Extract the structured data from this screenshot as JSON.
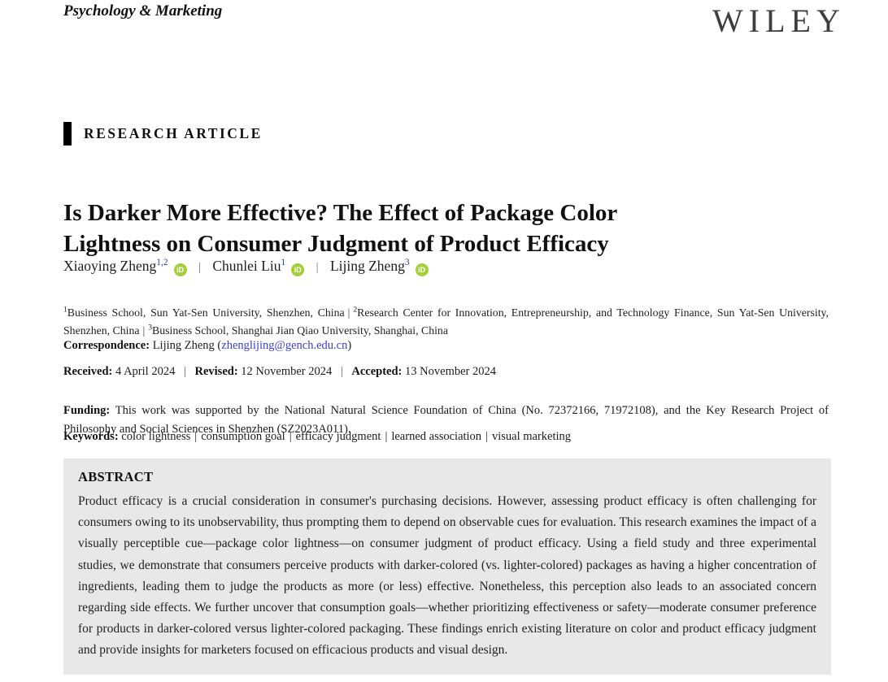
{
  "header": {
    "journal_name": "Psychology & Marketing",
    "publisher": "WILEY"
  },
  "article": {
    "type_label": "RESEARCH ARTICLE",
    "title_lines": [
      "Is Darker More Effective? The Effect of Package Color",
      "Lightness on Consumer Judgment of Product Efficacy"
    ]
  },
  "authors": [
    {
      "name": "Xiaoying Zheng",
      "refs": "1,2"
    },
    {
      "name": "Chunlei Liu",
      "refs": "1"
    },
    {
      "name": "Lijing Zheng",
      "refs": "3"
    }
  ],
  "affiliations": [
    {
      "num": "1",
      "text": "Business School, Sun Yat-Sen University, Shenzhen, China"
    },
    {
      "num": "2",
      "text": "Research Center for Innovation, Entrepreneurship, and Technology Finance, Sun Yat-Sen University, Shenzhen, China"
    },
    {
      "num": "3",
      "text": "Business School, Shanghai Jian Qiao University, Shanghai, China"
    }
  ],
  "correspondence": {
    "label": "Correspondence:",
    "text_before": "Lijing Zheng (",
    "email": "zhenglijing@gench.edu.cn",
    "text_after": ")"
  },
  "dates": {
    "received_label": "Received:",
    "received": "4 April 2024",
    "revised_label": "Revised:",
    "revised": "12 November 2024",
    "accepted_label": "Accepted:",
    "accepted": "13 November 2024"
  },
  "funding": {
    "label": "Funding:",
    "text": "This work was supported by the National Natural Science Foundation of China (No. 72372166, 71972108), and the Key Research Project of Philosophy and Social Sciences in Shenzhen (SZ2023A011)."
  },
  "keywords": {
    "label": "Keywords:",
    "items": [
      "color lightness",
      "consumption goal",
      "efficacy judgment",
      "learned association",
      "visual marketing"
    ]
  },
  "abstract": {
    "heading": "ABSTRACT",
    "text": "Product efficacy is a crucial consideration in consumer's purchasing decisions. However, assessing product efficacy is often challenging for consumers owing to its unobservability, thus prompting them to depend on observable cues for evaluation. This research examines the impact of a visually perceptible cue—package color lightness—on consumer judgment of product efficacy. Using a field study and three experimental studies, we demonstrate that consumers perceive products with darker-colored (vs. lighter-colored) packages as having a higher concentration of ingredients, leading them to judge the products as more (or less) effective. Nonetheless, this perception also leads to an associated concern regarding side effects. We further uncover that consumption goals—whether prioritizing effectiveness or safety—moderate consumer preference for products in darker-colored versus lighter-colored packaging. These findings enrich existing literature on color and product efficacy judgment and provide insights for marketers focused on efficacious products and visual design."
  },
  "misc": {
    "pipe": "|",
    "orcid_icon_text": "iD"
  },
  "colors": {
    "link_blue": "#3c40c9",
    "orcid_green": "#a6ce39",
    "abstract_background": "#e8e8ea",
    "badge_bar": "#000000"
  }
}
